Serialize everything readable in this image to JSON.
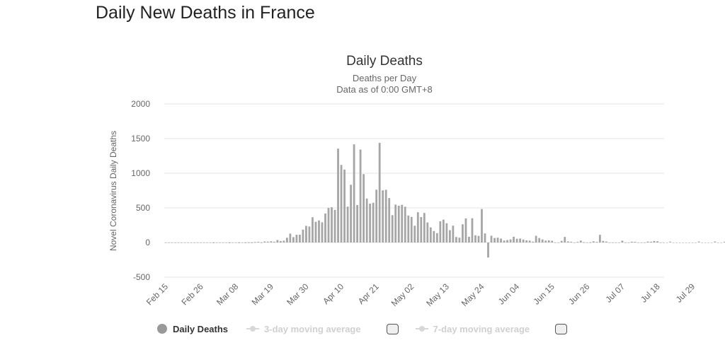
{
  "page": {
    "title": "Daily New Deaths in France"
  },
  "chart_data": {
    "type": "bar",
    "title": "Daily Deaths",
    "subtitle": "Deaths per Day",
    "subtitle2": "Data as of 0:00 GMT+8",
    "ylabel": "Novel Coronavirus Daily Deaths",
    "xlabel": "",
    "ylim": [
      -500,
      2000
    ],
    "yticks": [
      -500,
      0,
      500,
      1000,
      1500,
      2000
    ],
    "xticks": [
      "Feb 15",
      "Feb 26",
      "Mar 08",
      "Mar 19",
      "Mar 30",
      "Apr 10",
      "Apr 21",
      "May 02",
      "May 13",
      "May 24",
      "Jun 04",
      "Jun 15",
      "Jun 26",
      "Jul 07",
      "Jul 18",
      "Jul 29"
    ],
    "start_date": "Feb 15",
    "grid": true,
    "series": [
      {
        "name": "Daily Deaths",
        "color": "#a6a6a6",
        "values": [
          0,
          0,
          0,
          0,
          0,
          0,
          0,
          0,
          0,
          0,
          0,
          0,
          0,
          0,
          0,
          1,
          0,
          0,
          0,
          0,
          1,
          0,
          0,
          2,
          0,
          2,
          3,
          2,
          7,
          11,
          3,
          15,
          13,
          18,
          12,
          36,
          21,
          27,
          69,
          128,
          78,
          112,
          112,
          186,
          240,
          231,
          365,
          299,
          319,
          292,
          418,
          499,
          509,
          471,
          1355,
          1120,
          1053,
          518,
          833,
          1417,
          541,
          1341,
          987,
          635,
          561,
          574,
          762,
          1438,
          753,
          761,
          642,
          395,
          547,
          531,
          544,
          516,
          389,
          369,
          242,
          437,
          367,
          427,
          289,
          218,
          166,
          135,
          306,
          330,
          278,
          178,
          243,
          80,
          70,
          263,
          348,
          83,
          351,
          104,
          96,
          483,
          131,
          -217,
          98,
          66,
          70,
          57,
          29,
          35,
          45,
          83,
          54,
          57,
          43,
          31,
          28,
          13,
          97,
          65,
          44,
          28,
          31,
          26,
          0,
          0,
          24,
          81,
          16,
          11,
          0,
          9,
          28,
          5,
          0,
          4,
          17,
          9,
          111,
          23,
          14,
          0,
          0,
          0,
          0,
          27,
          0,
          0,
          12,
          11,
          0,
          0,
          0,
          14,
          12,
          22,
          18,
          0,
          0,
          0,
          12,
          0,
          0,
          0,
          0,
          0,
          0,
          0,
          0,
          13,
          0,
          0,
          0,
          0,
          14,
          0,
          0,
          11,
          0,
          0,
          0,
          0,
          0,
          0,
          0,
          0,
          0,
          0,
          0,
          0,
          0,
          0,
          0,
          0,
          0,
          0,
          0,
          0,
          9,
          0,
          0,
          0,
          0,
          0,
          0,
          0,
          0,
          0,
          0,
          6,
          0
        ]
      }
    ],
    "legend": [
      {
        "label": "Daily Deaths",
        "color": "#999999"
      },
      {
        "label": "3-day moving average",
        "color": "#d8d8d8"
      },
      {
        "label": "7-day moving average",
        "color": "#d8d8d8"
      }
    ]
  }
}
